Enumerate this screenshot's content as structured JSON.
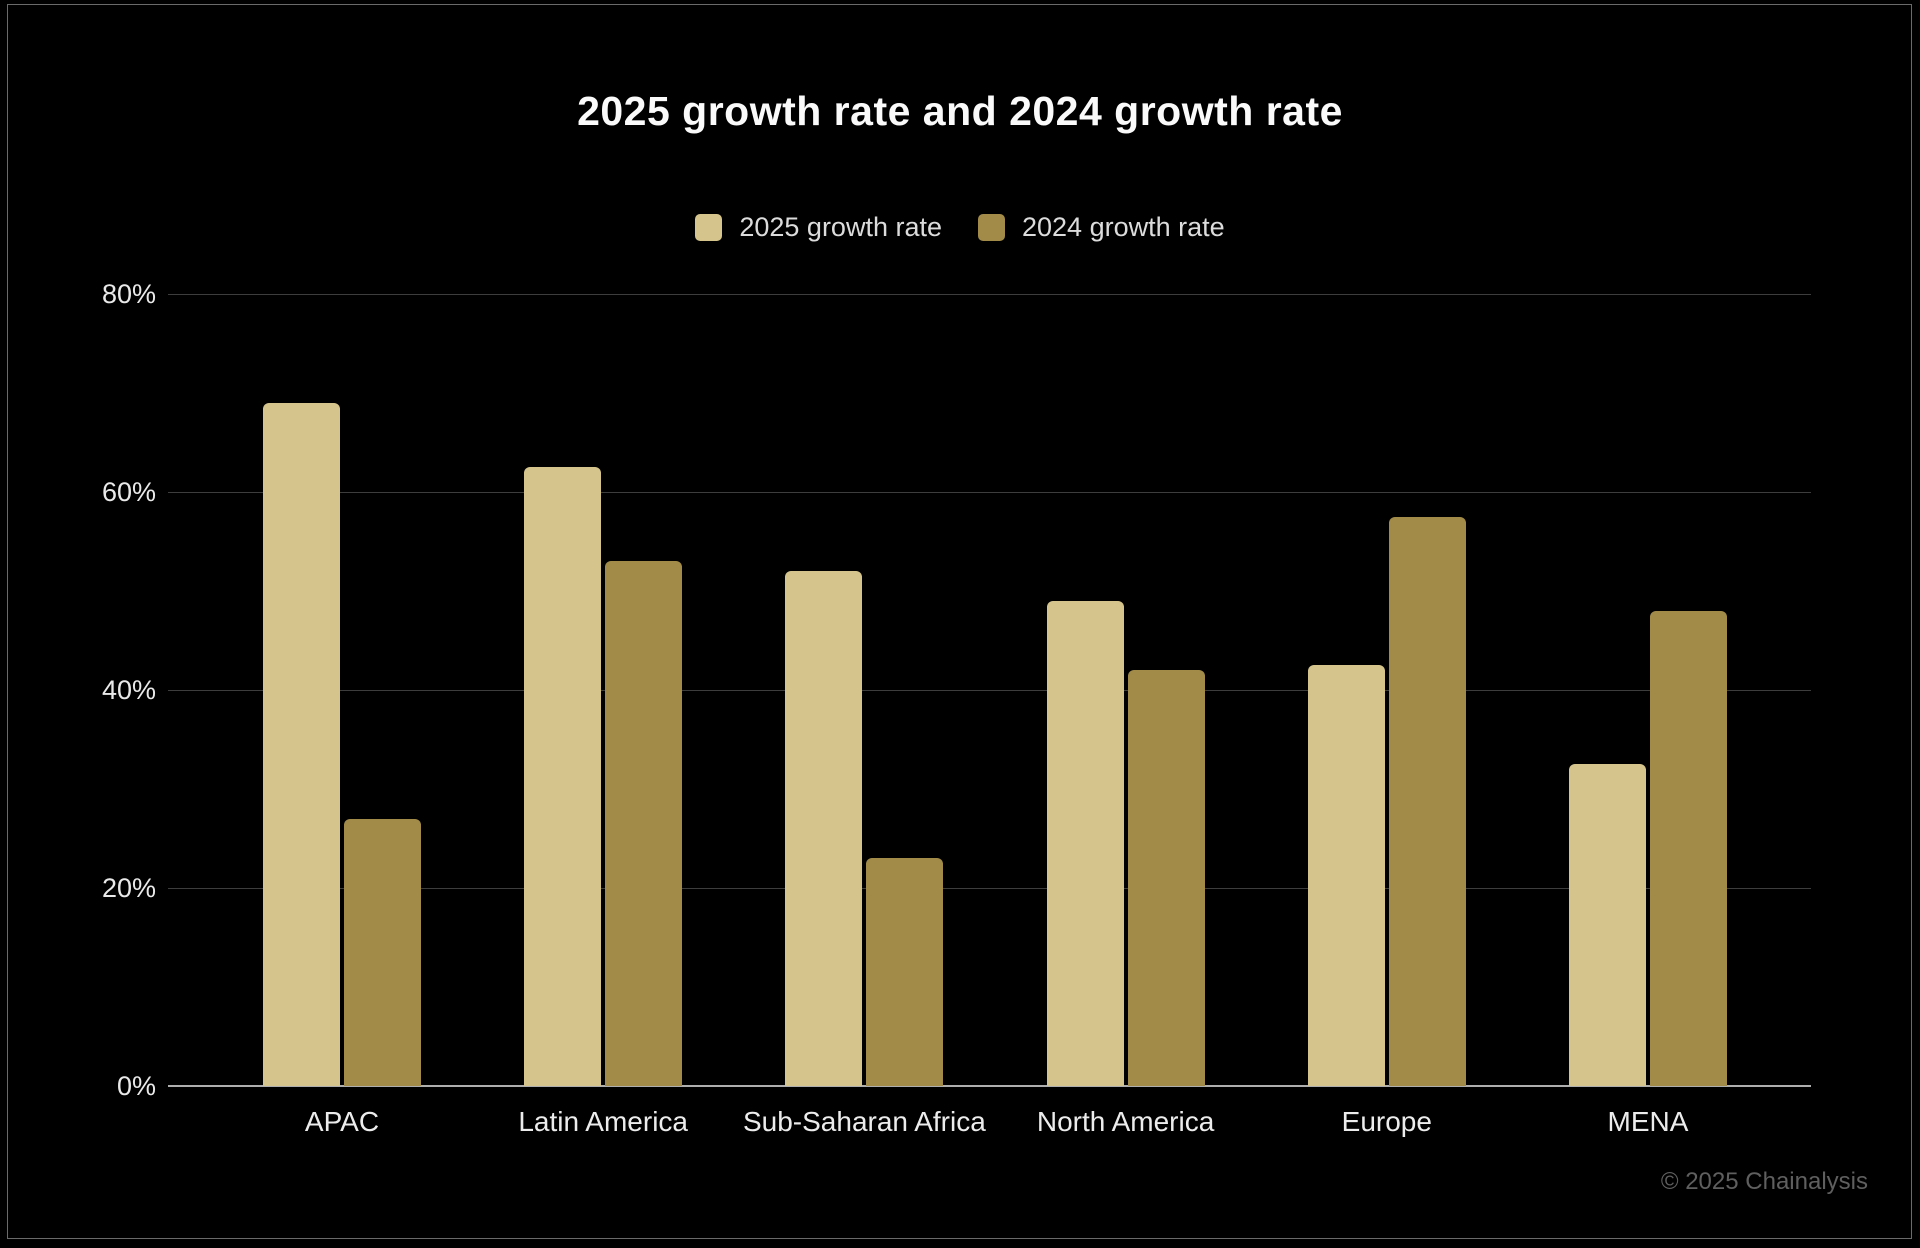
{
  "page": {
    "footer_credit": "© 2025 Chainalysis",
    "background_color": "#000000",
    "frame_border_color": "#6a6a6a"
  },
  "chart_data": {
    "type": "bar",
    "title": "2025 growth rate and 2024 growth rate",
    "categories": [
      "APAC",
      "Latin America",
      "Sub-Saharan Africa",
      "North America",
      "Europe",
      "MENA"
    ],
    "series": [
      {
        "name": "2025 growth rate",
        "color": "#d5c58c",
        "values": [
          69,
          62.5,
          52,
          49,
          42.5,
          32.5
        ]
      },
      {
        "name": "2024 growth rate",
        "color": "#a28b49",
        "values": [
          27,
          53,
          23,
          42,
          57.5,
          48
        ]
      }
    ],
    "xlabel": "",
    "ylabel": "",
    "ylim": [
      0,
      80
    ],
    "y_tick_step": 20,
    "y_tick_labels": [
      "0%",
      "20%",
      "40%",
      "60%",
      "80%"
    ],
    "grid": true,
    "legend_position": "top-center",
    "gridline_color": "#3d3d3d",
    "baseline_color": "#aeaeae"
  }
}
